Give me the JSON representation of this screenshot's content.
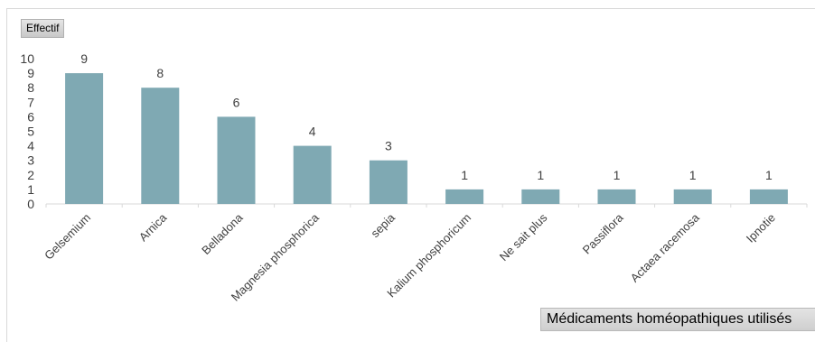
{
  "chart_data": {
    "type": "bar",
    "ylabel": "Effectif",
    "xlabel": "Médicaments homéopathiques utilisés",
    "categories": [
      "Gelsemium",
      "Arnica",
      "Belladona",
      "Magnesia phosphorica",
      "sepia",
      "Kalium phosphoricum",
      "Ne sait plus",
      "Passiflora",
      "Actaea racemosa",
      "Ipnotie"
    ],
    "values": [
      9,
      8,
      6,
      4,
      3,
      1,
      1,
      1,
      1,
      1
    ],
    "ylim": [
      0,
      10
    ],
    "yticks": [
      0,
      1,
      2,
      3,
      4,
      5,
      6,
      7,
      8,
      9,
      10
    ],
    "data_labels": true,
    "grid": false,
    "bar_color": "#7fa9b3"
  }
}
